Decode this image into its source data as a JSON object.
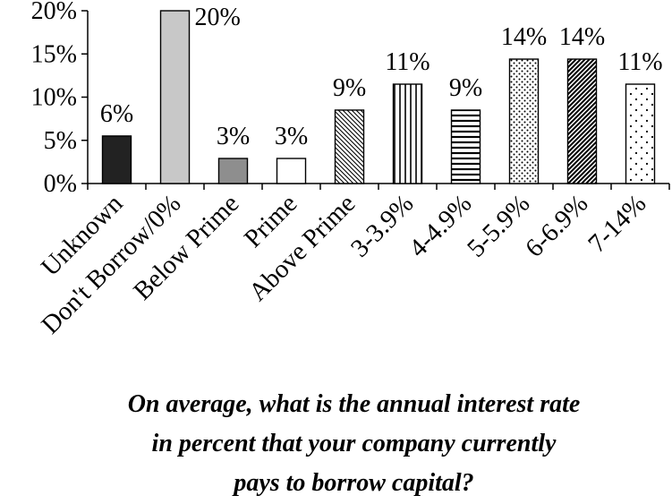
{
  "chart_data": {
    "type": "bar",
    "categories": [
      "Unknown",
      "Don't Borrow/0%",
      "Below Prime",
      "Prime",
      "Above Prime",
      "3-3.9%",
      "4-4.9%",
      "5-5.9%",
      "6-6.9%",
      "7-14%"
    ],
    "values": [
      5.5,
      20,
      2.9,
      2.9,
      8.5,
      11.5,
      8.5,
      14.4,
      14.4,
      11.5
    ],
    "value_labels": [
      "6%",
      "20%",
      "3%",
      "3%",
      "9%",
      "11%",
      "9%",
      "14%",
      "14%",
      "11%"
    ],
    "bar_fills": [
      "solid-dark",
      "solid-light-gray",
      "solid-mid-gray",
      "white",
      "diagonal-hatch",
      "vertical-lines",
      "horizontal-lines",
      "dense-dots",
      "dark-diagonal",
      "sparse-dots"
    ],
    "colors": {
      "dark": "#222222",
      "light_gray": "#c8c8c8",
      "mid_gray": "#8e8e8e"
    },
    "yticks": [
      "0%",
      "5%",
      "10%",
      "15%",
      "20%"
    ],
    "ylim": [
      0,
      20
    ],
    "xlabel_lines": [
      "On average, what is the annual interest rate",
      "in percent that your company currently",
      "pays to borrow capital?"
    ],
    "grid": false,
    "legend": "none"
  }
}
